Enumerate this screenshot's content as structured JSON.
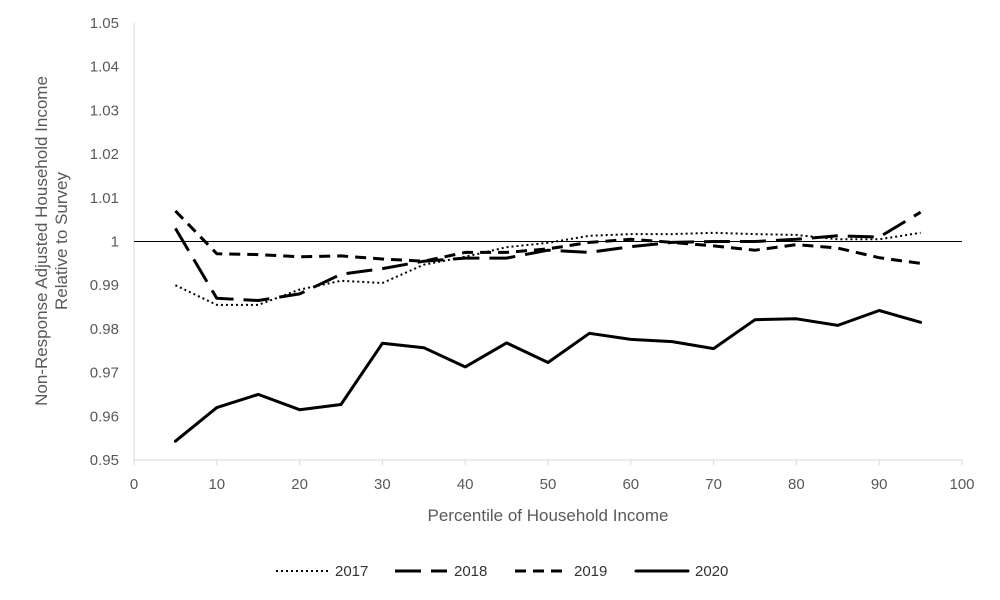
{
  "chart_data": {
    "type": "line",
    "xlabel": "Percentile of Household Income",
    "ylabel": "Non-Response Adjusted Household Income Relative to Survey",
    "ylabel_lines": [
      "Non-Response Adjusted Household Income",
      "Relative to Survey"
    ],
    "xlim": [
      0,
      100
    ],
    "ylim": [
      0.95,
      1.05
    ],
    "x_ticks": [
      0,
      10,
      20,
      30,
      40,
      50,
      60,
      70,
      80,
      90,
      100
    ],
    "x_tick_labels": [
      "0",
      "10",
      "20",
      "30",
      "40",
      "50",
      "60",
      "70",
      "80",
      "90",
      "100"
    ],
    "y_ticks": [
      0.95,
      0.96,
      0.97,
      0.98,
      0.99,
      1.0,
      1.01,
      1.02,
      1.03,
      1.04,
      1.05
    ],
    "y_tick_labels": [
      "0.95",
      "0.96",
      "0.97",
      "0.98",
      "0.99",
      "1",
      "1.01",
      "1.02",
      "1.03",
      "1.04",
      "1.05"
    ],
    "reference_line": 1.0,
    "grid": false,
    "legend_position": "bottom",
    "x": [
      5,
      10,
      15,
      20,
      25,
      30,
      35,
      40,
      45,
      50,
      55,
      60,
      65,
      70,
      75,
      80,
      85,
      90,
      95
    ],
    "series": [
      {
        "name": "2017",
        "style": "dotted",
        "color": "#000000",
        "values": [
          0.99,
          0.9855,
          0.9855,
          0.989,
          0.991,
          0.9905,
          0.9947,
          0.9965,
          0.9987,
          0.9997,
          1.0013,
          1.0017,
          1.0017,
          1.002,
          1.0017,
          1.0015,
          1.0005,
          1.0005,
          1.002
        ]
      },
      {
        "name": "2018",
        "style": "long-dash",
        "color": "#000000",
        "values": [
          1.003,
          0.987,
          0.9865,
          0.988,
          0.9925,
          0.9938,
          0.9955,
          0.9962,
          0.9962,
          0.998,
          0.9975,
          0.9988,
          0.9998,
          1.0,
          1.0,
          1.0005,
          1.0013,
          1.001,
          1.0067
        ]
      },
      {
        "name": "2019",
        "style": "dash",
        "color": "#000000",
        "values": [
          1.007,
          0.9972,
          0.997,
          0.9965,
          0.9967,
          0.996,
          0.9955,
          0.9975,
          0.9975,
          0.9983,
          0.9998,
          1.0005,
          0.9998,
          0.999,
          0.998,
          0.9993,
          0.9985,
          0.9963,
          0.995
        ]
      },
      {
        "name": "2020",
        "style": "solid",
        "color": "#000000",
        "values": [
          0.9543,
          0.962,
          0.965,
          0.9615,
          0.9627,
          0.9767,
          0.9757,
          0.9713,
          0.9768,
          0.9723,
          0.979,
          0.9776,
          0.9771,
          0.9755,
          0.9821,
          0.9823,
          0.9808,
          0.9842,
          0.9815
        ]
      }
    ]
  },
  "colors": {
    "axis": "#d9d9d9",
    "tick_text": "#595959",
    "reference_line": "#000000"
  }
}
